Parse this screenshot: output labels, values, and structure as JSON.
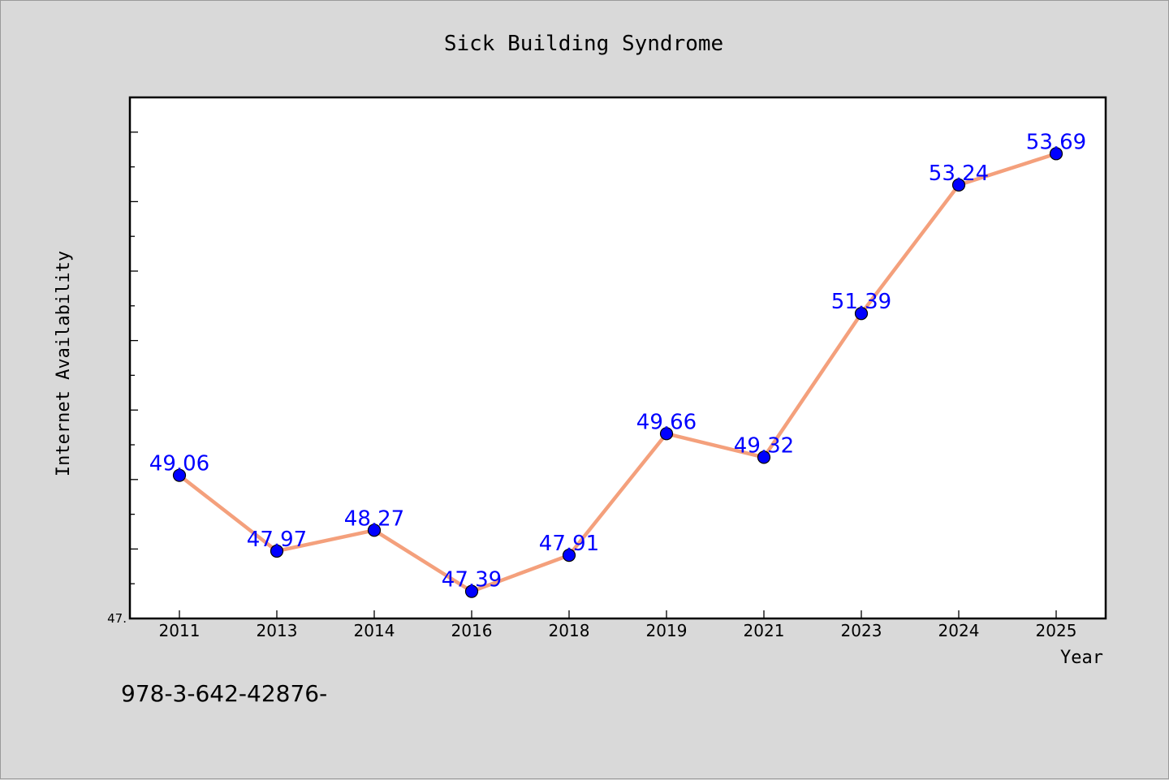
{
  "chart_data": {
    "type": "line",
    "title": "Sick Building Syndrome",
    "xlabel": "Year",
    "ylabel": "Internet Availability",
    "categories": [
      "2011",
      "2013",
      "2014",
      "2016",
      "2018",
      "2019",
      "2021",
      "2023",
      "2024",
      "2025"
    ],
    "series": [
      {
        "values": [
          49.06,
          47.97,
          48.27,
          47.39,
          47.91,
          49.66,
          49.32,
          51.39,
          53.24,
          53.69
        ],
        "labels": [
          "49.06",
          "47.97",
          "48.27",
          "47.39",
          "47.91",
          "49.66",
          "49.32",
          "51.39",
          "53.24",
          "53.69"
        ],
        "line_color": "#f4a07c",
        "marker_color": "#0000ff"
      }
    ],
    "ylim": [
      47.0,
      54.5
    ],
    "y_tick_labels": [
      {
        "value": 47.0,
        "label": "47."
      }
    ],
    "grid": false,
    "legend": "none"
  },
  "footer_text": "978-3-642-42876-",
  "colors": {
    "background": "#d9d9d9",
    "plot_background": "#ffffff",
    "label_color": "#0000ff",
    "axis": "#000000"
  }
}
